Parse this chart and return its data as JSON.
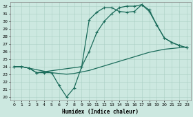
{
  "xlabel": "Humidex (Indice chaleur)",
  "bg_color": "#cce8e0",
  "grid_color": "#aacfc5",
  "line_color": "#1a6b5a",
  "xlim": [
    -0.5,
    23.5
  ],
  "ylim": [
    19.5,
    32.5
  ],
  "xticks": [
    0,
    1,
    2,
    3,
    4,
    5,
    6,
    7,
    8,
    9,
    10,
    11,
    12,
    13,
    14,
    15,
    16,
    17,
    18,
    19,
    20,
    21,
    22,
    23
  ],
  "yticks": [
    20,
    21,
    22,
    23,
    24,
    25,
    26,
    27,
    28,
    29,
    30,
    31,
    32
  ],
  "line1_x": [
    0,
    1,
    2,
    3,
    4,
    5,
    6,
    7,
    8,
    9,
    10,
    11,
    12,
    13,
    14,
    15,
    16,
    17,
    18,
    19,
    20,
    21,
    22,
    23
  ],
  "line1_y": [
    24.0,
    24.0,
    23.8,
    23.6,
    23.4,
    23.2,
    23.1,
    23.0,
    23.1,
    23.3,
    23.5,
    23.8,
    24.1,
    24.4,
    24.7,
    25.0,
    25.3,
    25.6,
    25.9,
    26.1,
    26.3,
    26.4,
    26.5,
    26.6
  ],
  "line2_x": [
    0,
    1,
    2,
    3,
    4,
    5,
    6,
    7,
    8,
    9,
    10,
    11,
    12,
    13,
    14,
    15,
    16,
    17,
    18,
    19,
    20,
    21,
    22,
    23
  ],
  "line2_y": [
    24.0,
    24.0,
    23.8,
    23.2,
    23.2,
    23.2,
    21.5,
    20.0,
    21.2,
    24.0,
    30.2,
    31.2,
    31.8,
    31.8,
    31.3,
    31.2,
    31.3,
    32.2,
    31.3,
    29.5,
    27.8,
    27.2,
    26.8,
    26.5
  ],
  "line3_x": [
    0,
    1,
    2,
    3,
    9,
    10,
    11,
    12,
    13,
    14,
    15,
    16,
    17,
    18,
    19,
    20,
    21,
    22,
    23
  ],
  "line3_y": [
    24.0,
    24.0,
    23.8,
    23.2,
    24.0,
    26.0,
    28.5,
    30.0,
    31.0,
    31.8,
    32.0,
    32.0,
    32.2,
    31.5,
    29.5,
    27.8,
    27.2,
    26.8,
    26.5
  ],
  "marker_size": 2.5,
  "line_width": 0.9
}
